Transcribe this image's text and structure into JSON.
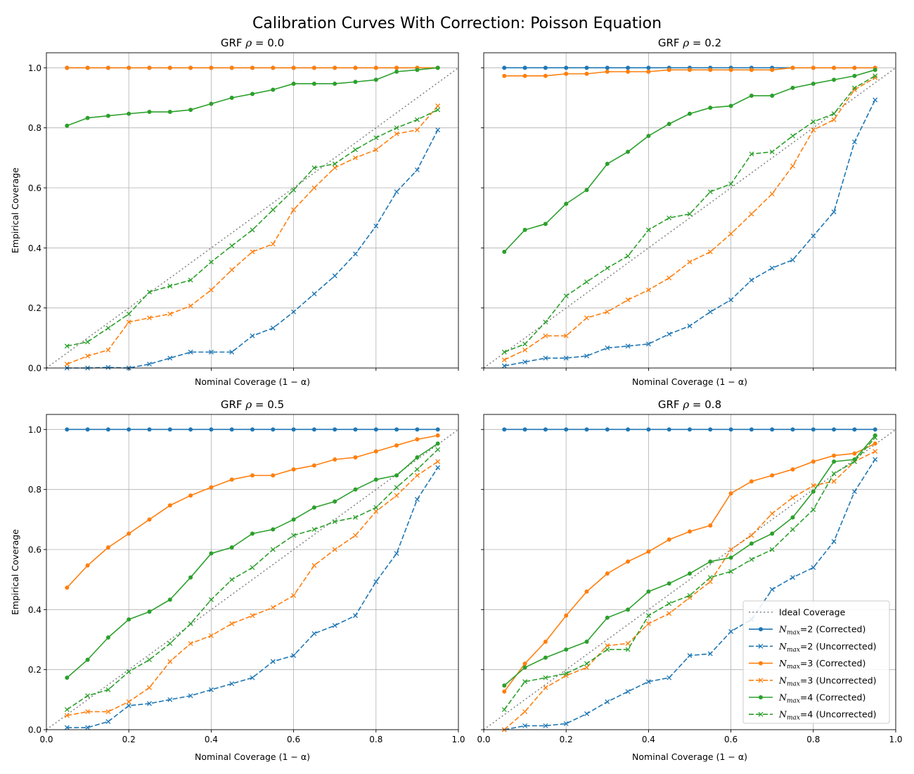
{
  "figure": {
    "title": "Calibration Curves With Correction: Poisson Equation"
  },
  "colors": {
    "blue": "#1f77b4",
    "orange": "#ff7f0e",
    "green": "#2ca02c",
    "ideal": "#808080",
    "grid": "#b0b0b0"
  },
  "chart_data": [
    {
      "type": "line",
      "title": "GRF ρ = 0.0",
      "title_prefix": "GRF ",
      "title_rho": "ρ",
      "title_value": " = 0.0",
      "xlabel": "Nominal Coverage (1 − α)",
      "ylabel": "Empirical Coverage",
      "xlim": [
        0,
        1
      ],
      "ylim": [
        0,
        1.05
      ],
      "x": [
        0.05,
        0.1,
        0.15,
        0.2,
        0.25,
        0.3,
        0.35,
        0.4,
        0.45,
        0.5,
        0.55,
        0.6,
        0.65,
        0.7,
        0.75,
        0.8,
        0.85,
        0.9,
        0.95
      ],
      "series": [
        {
          "name": "N_max=2 (Corrected)",
          "color": "blue",
          "style": "solid",
          "marker": "o",
          "values": [
            1,
            1,
            1,
            1,
            1,
            1,
            1,
            1,
            1,
            1,
            1,
            1,
            1,
            1,
            1,
            1,
            1,
            1,
            1
          ]
        },
        {
          "name": "N_max=2 (Uncorrected)",
          "color": "blue",
          "style": "dashed",
          "marker": "x",
          "values": [
            0,
            0,
            0.002,
            0,
            0.013,
            0.033,
            0.053,
            0.053,
            0.053,
            0.107,
            0.133,
            0.187,
            0.247,
            0.307,
            0.38,
            0.473,
            0.587,
            0.66,
            0.793
          ]
        },
        {
          "name": "N_max=3 (Corrected)",
          "color": "orange",
          "style": "solid",
          "marker": "o",
          "values": [
            1,
            1,
            1,
            1,
            1,
            1,
            1,
            1,
            1,
            1,
            1,
            1,
            1,
            1,
            1,
            1,
            1,
            1,
            1
          ]
        },
        {
          "name": "N_max=3 (Uncorrected)",
          "color": "orange",
          "style": "dashed",
          "marker": "x",
          "values": [
            0.013,
            0.04,
            0.06,
            0.153,
            0.167,
            0.18,
            0.207,
            0.26,
            0.327,
            0.387,
            0.413,
            0.527,
            0.6,
            0.667,
            0.7,
            0.727,
            0.78,
            0.793,
            0.873
          ]
        },
        {
          "name": "N_max=4 (Corrected)",
          "color": "green",
          "style": "solid",
          "marker": "o",
          "values": [
            0.807,
            0.833,
            0.84,
            0.847,
            0.853,
            0.853,
            0.86,
            0.88,
            0.9,
            0.913,
            0.927,
            0.947,
            0.947,
            0.947,
            0.953,
            0.96,
            0.987,
            0.993,
            1.0
          ]
        },
        {
          "name": "N_max=4 (Uncorrected)",
          "color": "green",
          "style": "dashed",
          "marker": "x",
          "values": [
            0.073,
            0.087,
            0.133,
            0.18,
            0.253,
            0.273,
            0.293,
            0.353,
            0.407,
            0.46,
            0.527,
            0.593,
            0.667,
            0.68,
            0.727,
            0.767,
            0.8,
            0.827,
            0.86
          ]
        }
      ]
    },
    {
      "type": "line",
      "title": "GRF ρ = 0.2",
      "title_prefix": "GRF ",
      "title_rho": "ρ",
      "title_value": " = 0.2",
      "xlabel": "Nominal Coverage (1 − α)",
      "ylabel": "",
      "xlim": [
        0,
        1
      ],
      "ylim": [
        0,
        1.05
      ],
      "x": [
        0.05,
        0.1,
        0.15,
        0.2,
        0.25,
        0.3,
        0.35,
        0.4,
        0.45,
        0.5,
        0.55,
        0.6,
        0.65,
        0.7,
        0.75,
        0.8,
        0.85,
        0.9,
        0.95
      ],
      "series": [
        {
          "name": "N_max=2 (Corrected)",
          "color": "blue",
          "style": "solid",
          "marker": "o",
          "values": [
            1,
            1,
            1,
            1,
            1,
            1,
            1,
            1,
            1,
            1,
            1,
            1,
            1,
            1,
            1,
            1,
            1,
            1,
            1
          ]
        },
        {
          "name": "N_max=2 (Uncorrected)",
          "color": "blue",
          "style": "dashed",
          "marker": "x",
          "values": [
            0.007,
            0.02,
            0.033,
            0.033,
            0.04,
            0.067,
            0.073,
            0.08,
            0.113,
            0.14,
            0.187,
            0.227,
            0.293,
            0.333,
            0.36,
            0.44,
            0.52,
            0.753,
            0.893
          ]
        },
        {
          "name": "N_max=3 (Corrected)",
          "color": "orange",
          "style": "solid",
          "marker": "o",
          "values": [
            0.973,
            0.973,
            0.973,
            0.98,
            0.98,
            0.987,
            0.987,
            0.987,
            0.993,
            0.993,
            0.993,
            0.993,
            0.993,
            0.993,
            1,
            1,
            1,
            1,
            1
          ]
        },
        {
          "name": "N_max=3 (Uncorrected)",
          "color": "orange",
          "style": "dashed",
          "marker": "x",
          "values": [
            0.027,
            0.06,
            0.107,
            0.107,
            0.167,
            0.187,
            0.227,
            0.26,
            0.3,
            0.353,
            0.387,
            0.447,
            0.513,
            0.58,
            0.673,
            0.793,
            0.827,
            0.927,
            0.967
          ]
        },
        {
          "name": "N_max=4 (Corrected)",
          "color": "green",
          "style": "solid",
          "marker": "o",
          "values": [
            0.387,
            0.46,
            0.48,
            0.547,
            0.593,
            0.68,
            0.72,
            0.773,
            0.813,
            0.847,
            0.867,
            0.873,
            0.907,
            0.907,
            0.933,
            0.947,
            0.96,
            0.973,
            0.993
          ]
        },
        {
          "name": "N_max=4 (Uncorrected)",
          "color": "green",
          "style": "dashed",
          "marker": "x",
          "values": [
            0.053,
            0.08,
            0.153,
            0.24,
            0.287,
            0.333,
            0.373,
            0.46,
            0.5,
            0.513,
            0.587,
            0.613,
            0.713,
            0.72,
            0.773,
            0.82,
            0.847,
            0.933,
            0.973
          ]
        }
      ]
    },
    {
      "type": "line",
      "title": "GRF ρ = 0.5",
      "title_prefix": "GRF ",
      "title_rho": "ρ",
      "title_value": " = 0.5",
      "xlabel": "Nominal Coverage (1 − α)",
      "ylabel": "Empirical Coverage",
      "xlim": [
        0,
        1
      ],
      "ylim": [
        0,
        1.05
      ],
      "x": [
        0.05,
        0.1,
        0.15,
        0.2,
        0.25,
        0.3,
        0.35,
        0.4,
        0.45,
        0.5,
        0.55,
        0.6,
        0.65,
        0.7,
        0.75,
        0.8,
        0.85,
        0.9,
        0.95
      ],
      "series": [
        {
          "name": "N_max=2 (Corrected)",
          "color": "blue",
          "style": "solid",
          "marker": "o",
          "values": [
            1,
            1,
            1,
            1,
            1,
            1,
            1,
            1,
            1,
            1,
            1,
            1,
            1,
            1,
            1,
            1,
            1,
            1,
            1
          ]
        },
        {
          "name": "N_max=2 (Uncorrected)",
          "color": "blue",
          "style": "dashed",
          "marker": "x",
          "values": [
            0.007,
            0.007,
            0.027,
            0.08,
            0.087,
            0.1,
            0.113,
            0.133,
            0.153,
            0.173,
            0.227,
            0.247,
            0.32,
            0.347,
            0.38,
            0.493,
            0.587,
            0.767,
            0.873
          ]
        },
        {
          "name": "N_max=3 (Corrected)",
          "color": "orange",
          "style": "solid",
          "marker": "o",
          "values": [
            0.473,
            0.547,
            0.607,
            0.653,
            0.7,
            0.747,
            0.78,
            0.807,
            0.833,
            0.847,
            0.847,
            0.867,
            0.88,
            0.9,
            0.907,
            0.927,
            0.947,
            0.967,
            0.98
          ]
        },
        {
          "name": "N_max=3 (Uncorrected)",
          "color": "orange",
          "style": "dashed",
          "marker": "x",
          "values": [
            0.047,
            0.06,
            0.06,
            0.093,
            0.14,
            0.227,
            0.287,
            0.313,
            0.353,
            0.38,
            0.407,
            0.447,
            0.547,
            0.6,
            0.647,
            0.727,
            0.78,
            0.847,
            0.893
          ]
        },
        {
          "name": "N_max=4 (Corrected)",
          "color": "green",
          "style": "solid",
          "marker": "o",
          "values": [
            0.173,
            0.233,
            0.307,
            0.367,
            0.393,
            0.433,
            0.507,
            0.587,
            0.607,
            0.653,
            0.667,
            0.7,
            0.74,
            0.76,
            0.8,
            0.833,
            0.847,
            0.907,
            0.953
          ]
        },
        {
          "name": "N_max=4 (Uncorrected)",
          "color": "green",
          "style": "dashed",
          "marker": "x",
          "values": [
            0.067,
            0.113,
            0.133,
            0.193,
            0.233,
            0.287,
            0.353,
            0.433,
            0.5,
            0.54,
            0.6,
            0.647,
            0.667,
            0.693,
            0.707,
            0.74,
            0.807,
            0.867,
            0.933
          ]
        }
      ]
    },
    {
      "type": "line",
      "title": "GRF ρ = 0.8",
      "title_prefix": "GRF ",
      "title_rho": "ρ",
      "title_value": " = 0.8",
      "xlabel": "Nominal Coverage (1 − α)",
      "ylabel": "",
      "xlim": [
        0,
        1
      ],
      "ylim": [
        0,
        1.05
      ],
      "x": [
        0.05,
        0.1,
        0.15,
        0.2,
        0.25,
        0.3,
        0.35,
        0.4,
        0.45,
        0.5,
        0.55,
        0.6,
        0.65,
        0.7,
        0.75,
        0.8,
        0.85,
        0.9,
        0.95
      ],
      "series": [
        {
          "name": "N_max=2 (Corrected)",
          "color": "blue",
          "style": "solid",
          "marker": "o",
          "values": [
            1,
            1,
            1,
            1,
            1,
            1,
            1,
            1,
            1,
            1,
            1,
            1,
            1,
            1,
            1,
            1,
            1,
            1,
            1
          ]
        },
        {
          "name": "N_max=2 (Uncorrected)",
          "color": "blue",
          "style": "dashed",
          "marker": "x",
          "values": [
            0,
            0.013,
            0.013,
            0.02,
            0.053,
            0.093,
            0.127,
            0.16,
            0.173,
            0.247,
            0.253,
            0.327,
            0.367,
            0.467,
            0.507,
            0.54,
            0.627,
            0.793,
            0.9
          ]
        },
        {
          "name": "N_max=3 (Corrected)",
          "color": "orange",
          "style": "solid",
          "marker": "o",
          "values": [
            0.127,
            0.22,
            0.293,
            0.38,
            0.46,
            0.52,
            0.56,
            0.593,
            0.633,
            0.66,
            0.68,
            0.787,
            0.827,
            0.847,
            0.867,
            0.893,
            0.913,
            0.92,
            0.953
          ]
        },
        {
          "name": "N_max=3 (Uncorrected)",
          "color": "orange",
          "style": "dashed",
          "marker": "x",
          "values": [
            0,
            0.06,
            0.14,
            0.18,
            0.207,
            0.28,
            0.287,
            0.353,
            0.387,
            0.44,
            0.493,
            0.6,
            0.647,
            0.72,
            0.773,
            0.813,
            0.827,
            0.893,
            0.927
          ]
        },
        {
          "name": "N_max=4 (Corrected)",
          "color": "green",
          "style": "solid",
          "marker": "o",
          "values": [
            0.147,
            0.207,
            0.24,
            0.267,
            0.293,
            0.373,
            0.4,
            0.46,
            0.487,
            0.52,
            0.56,
            0.573,
            0.62,
            0.653,
            0.707,
            0.793,
            0.893,
            0.9,
            0.98
          ]
        },
        {
          "name": "N_max=4 (Uncorrected)",
          "color": "green",
          "style": "dashed",
          "marker": "x",
          "values": [
            0.067,
            0.16,
            0.173,
            0.187,
            0.22,
            0.267,
            0.267,
            0.38,
            0.42,
            0.447,
            0.507,
            0.527,
            0.567,
            0.6,
            0.667,
            0.733,
            0.853,
            0.893,
            0.973
          ]
        }
      ],
      "legend": {
        "location": "lower-right",
        "entries": [
          {
            "label": "Ideal Coverage",
            "color": "ideal",
            "style": "dotted",
            "marker": "none"
          },
          {
            "label_prefix": "N",
            "label_sub": "max",
            "label_suffix": "=2 (Corrected)",
            "color": "blue",
            "style": "solid",
            "marker": "o"
          },
          {
            "label_prefix": "N",
            "label_sub": "max",
            "label_suffix": "=2 (Uncorrected)",
            "color": "blue",
            "style": "dashed",
            "marker": "x"
          },
          {
            "label_prefix": "N",
            "label_sub": "max",
            "label_suffix": "=3 (Corrected)",
            "color": "orange",
            "style": "solid",
            "marker": "o"
          },
          {
            "label_prefix": "N",
            "label_sub": "max",
            "label_suffix": "=3 (Uncorrected)",
            "color": "orange",
            "style": "dashed",
            "marker": "x"
          },
          {
            "label_prefix": "N",
            "label_sub": "max",
            "label_suffix": "=4 (Corrected)",
            "color": "green",
            "style": "solid",
            "marker": "o"
          },
          {
            "label_prefix": "N",
            "label_sub": "max",
            "label_suffix": "=4 (Uncorrected)",
            "color": "green",
            "style": "dashed",
            "marker": "x"
          }
        ]
      }
    }
  ],
  "axes": {
    "xticks": [
      0.0,
      0.2,
      0.4,
      0.6,
      0.8,
      1.0
    ],
    "xtick_labels": [
      "0.0",
      "0.2",
      "0.4",
      "0.6",
      "0.8",
      "1.0"
    ],
    "yticks": [
      0.0,
      0.2,
      0.4,
      0.6,
      0.8,
      1.0
    ],
    "ytick_labels": [
      "0.0",
      "0.2",
      "0.4",
      "0.6",
      "0.8",
      "1.0"
    ],
    "ideal_line": [
      [
        0,
        0
      ],
      [
        1,
        1
      ]
    ]
  }
}
